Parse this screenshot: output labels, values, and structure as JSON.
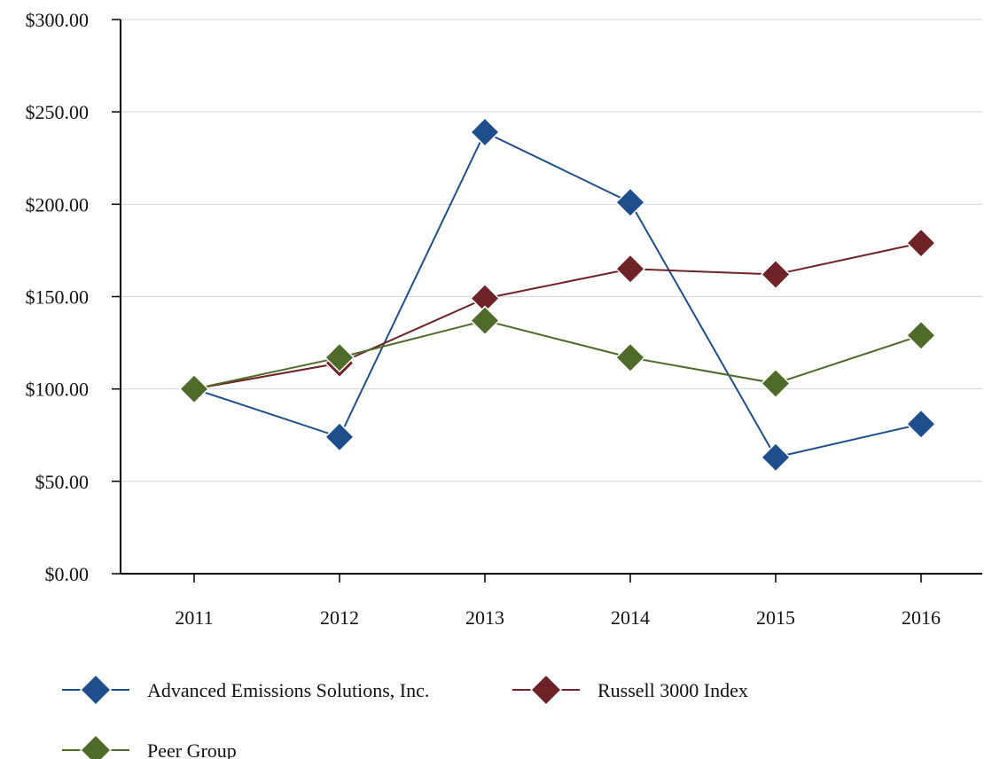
{
  "chart_data": {
    "type": "line",
    "title": "",
    "xlabel": "",
    "ylabel": "",
    "categories": [
      "2011",
      "2012",
      "2013",
      "2014",
      "2015",
      "2016"
    ],
    "ylim": [
      0,
      300
    ],
    "y_ticks": [
      "$0.00",
      "$50.00",
      "$100.00",
      "$150.00",
      "$200.00",
      "$250.00",
      "$300.00"
    ],
    "y_tick_values": [
      0,
      50,
      100,
      150,
      200,
      250,
      300
    ],
    "grid": "horizontal",
    "legend_position": "bottom",
    "marker": "diamond",
    "series": [
      {
        "name": "Advanced Emissions Solutions, Inc.",
        "color": "#1f4e8c",
        "values": [
          100,
          74,
          239,
          201,
          63,
          81
        ]
      },
      {
        "name": "Russell 3000 Index",
        "color": "#6e2327",
        "values": [
          100,
          114,
          149,
          165,
          162,
          179
        ]
      },
      {
        "name": "Peer Group",
        "color": "#4e6b2a",
        "values": [
          100,
          117,
          137,
          117,
          103,
          129
        ]
      }
    ]
  }
}
